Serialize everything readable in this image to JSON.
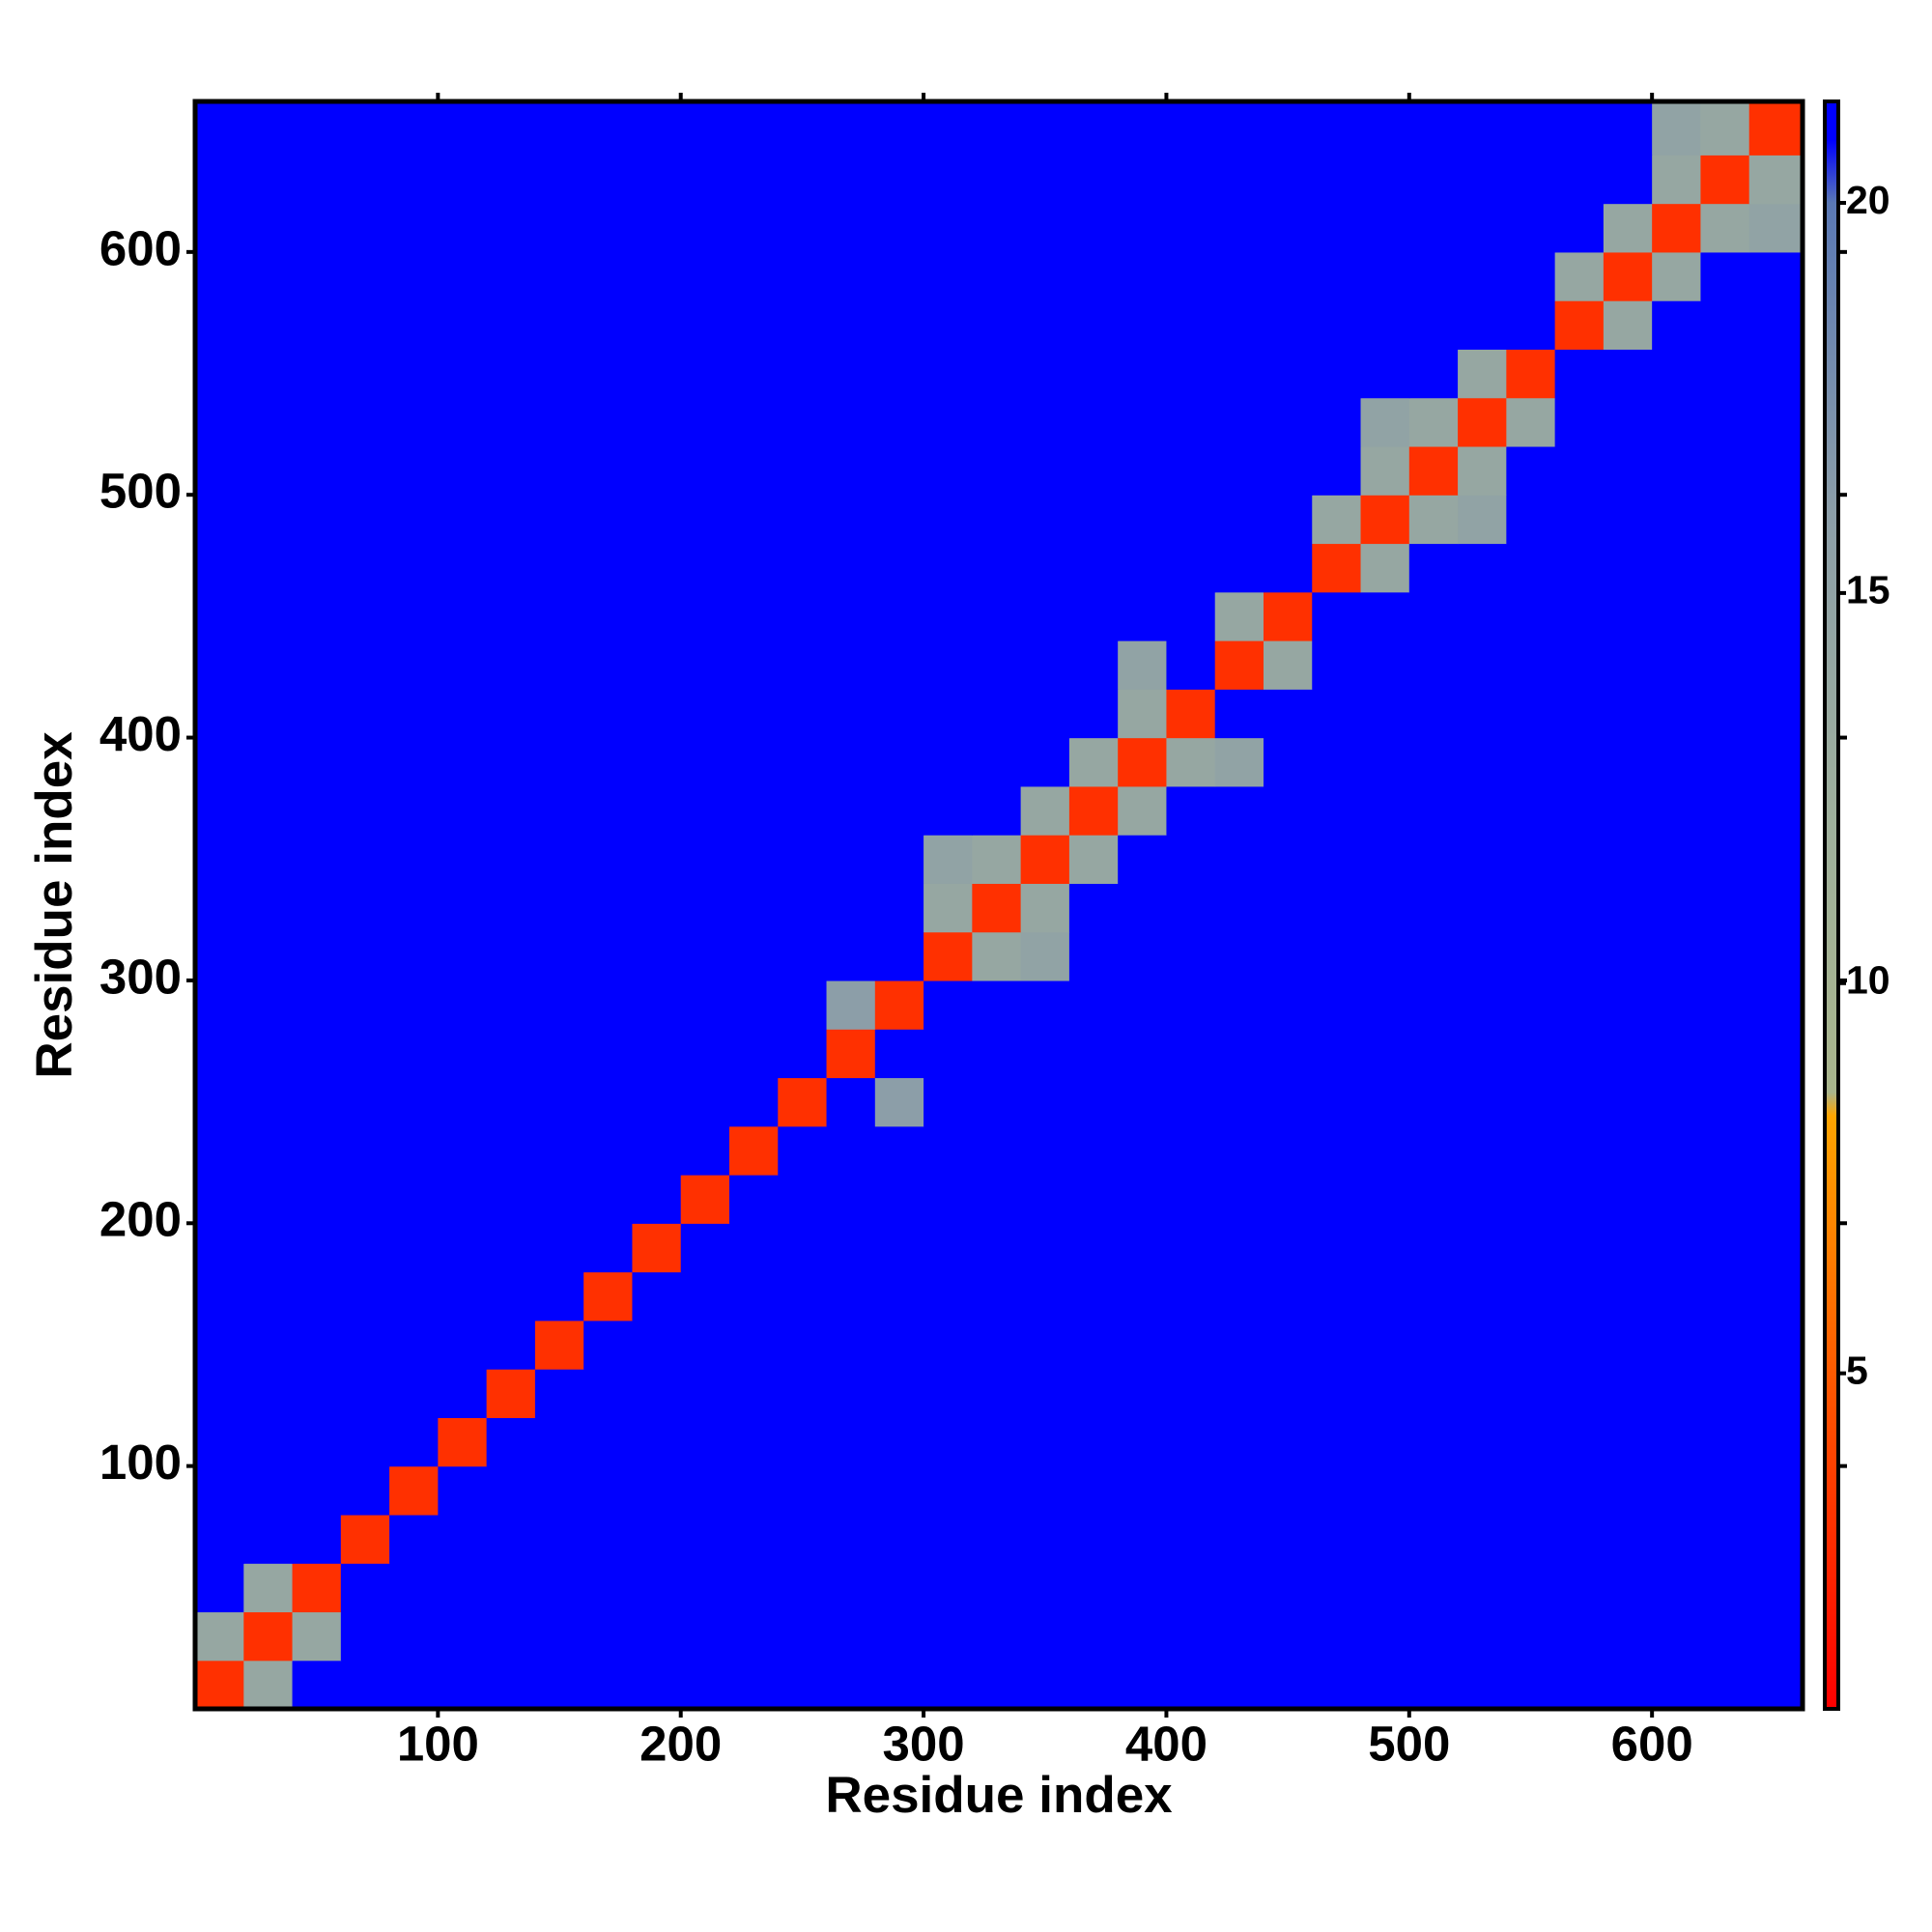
{
  "chart_data": {
    "type": "heatmap",
    "xlabel": "Residue index",
    "ylabel": "Residue index",
    "xlim": [
      0,
      662
    ],
    "ylim": [
      0,
      662
    ],
    "xticks": [
      100,
      200,
      300,
      400,
      500,
      600
    ],
    "yticks": [
      100,
      200,
      300,
      400,
      500,
      600
    ],
    "xbins": [
      0,
      20,
      40,
      60,
      80,
      100,
      120,
      140,
      160,
      180,
      200,
      220,
      240,
      260,
      280,
      300,
      320,
      340,
      360,
      380,
      400,
      420,
      440,
      460,
      480,
      500,
      520,
      540,
      560,
      580,
      600,
      620,
      640,
      662
    ],
    "ybins": [
      0,
      20,
      40,
      60,
      80,
      100,
      120,
      140,
      160,
      180,
      200,
      220,
      240,
      260,
      280,
      300,
      320,
      340,
      360,
      380,
      400,
      420,
      440,
      460,
      480,
      500,
      520,
      540,
      560,
      580,
      600,
      620,
      640,
      662
    ],
    "zlim": [
      0.7,
      21.3
    ],
    "zticks": [
      5,
      10,
      15,
      20
    ],
    "colorscale": [
      [
        0.7,
        "#ff0000"
      ],
      [
        5,
        "#ff5a00"
      ],
      [
        8.3,
        "#ffa500"
      ],
      [
        8.6,
        "#a9b58c"
      ],
      [
        12,
        "#9fb09c"
      ],
      [
        16,
        "#8c9ea8"
      ],
      [
        20,
        "#5a78b4"
      ],
      [
        20.8,
        "#0000ff"
      ],
      [
        21.3,
        "#0000ff"
      ]
    ],
    "z": [
      [
        3,
        14,
        21,
        21,
        21,
        21,
        21,
        21,
        21,
        21,
        21,
        21,
        21,
        21,
        21,
        21,
        21,
        21,
        21,
        21,
        21,
        21,
        21,
        21,
        21,
        21,
        21,
        21,
        21,
        21,
        21,
        21,
        21
      ],
      [
        14,
        3,
        14,
        21,
        21,
        21,
        21,
        21,
        21,
        21,
        21,
        21,
        21,
        21,
        21,
        21,
        21,
        21,
        21,
        21,
        21,
        21,
        21,
        21,
        21,
        21,
        21,
        21,
        21,
        21,
        21,
        21,
        21
      ],
      [
        21,
        14,
        3,
        21,
        21,
        21,
        21,
        21,
        21,
        21,
        21,
        21,
        21,
        21,
        21,
        21,
        21,
        21,
        21,
        21,
        21,
        21,
        21,
        21,
        21,
        21,
        21,
        21,
        21,
        21,
        21,
        21,
        21
      ],
      [
        21,
        21,
        21,
        3,
        21,
        21,
        21,
        21,
        21,
        21,
        21,
        21,
        21,
        21,
        21,
        21,
        21,
        21,
        21,
        21,
        21,
        21,
        21,
        21,
        21,
        21,
        21,
        21,
        21,
        21,
        21,
        21,
        21
      ],
      [
        21,
        21,
        21,
        21,
        3,
        21,
        21,
        21,
        21,
        21,
        21,
        21,
        21,
        21,
        21,
        21,
        21,
        21,
        21,
        21,
        21,
        21,
        21,
        21,
        21,
        21,
        21,
        21,
        21,
        21,
        21,
        21,
        21
      ],
      [
        21,
        21,
        21,
        21,
        21,
        3,
        21,
        21,
        21,
        21,
        21,
        21,
        21,
        21,
        21,
        21,
        21,
        21,
        21,
        21,
        21,
        21,
        21,
        21,
        21,
        21,
        21,
        21,
        21,
        21,
        21,
        21,
        21
      ],
      [
        21,
        21,
        21,
        21,
        21,
        21,
        3,
        21,
        21,
        21,
        21,
        21,
        21,
        21,
        21,
        21,
        21,
        21,
        21,
        21,
        21,
        21,
        21,
        21,
        21,
        21,
        21,
        21,
        21,
        21,
        21,
        21,
        21
      ],
      [
        21,
        21,
        21,
        21,
        21,
        21,
        21,
        3,
        21,
        21,
        21,
        21,
        21,
        21,
        21,
        21,
        21,
        21,
        21,
        21,
        21,
        21,
        21,
        21,
        21,
        21,
        21,
        21,
        21,
        21,
        21,
        21,
        21
      ],
      [
        21,
        21,
        21,
        21,
        21,
        21,
        21,
        21,
        3,
        21,
        21,
        21,
        21,
        21,
        21,
        21,
        21,
        21,
        21,
        21,
        21,
        21,
        21,
        21,
        21,
        21,
        21,
        21,
        21,
        21,
        21,
        21,
        21
      ],
      [
        21,
        21,
        21,
        21,
        21,
        21,
        21,
        21,
        21,
        3,
        21,
        21,
        21,
        21,
        21,
        21,
        21,
        21,
        21,
        21,
        21,
        21,
        21,
        21,
        21,
        21,
        21,
        21,
        21,
        21,
        21,
        21,
        21
      ],
      [
        21,
        21,
        21,
        21,
        21,
        21,
        21,
        21,
        21,
        21,
        3,
        21,
        21,
        21,
        21,
        21,
        21,
        21,
        21,
        21,
        21,
        21,
        21,
        21,
        21,
        21,
        21,
        21,
        21,
        21,
        21,
        21,
        21
      ],
      [
        21,
        21,
        21,
        21,
        21,
        21,
        21,
        21,
        21,
        21,
        21,
        3,
        21,
        21,
        21,
        21,
        21,
        21,
        21,
        21,
        21,
        21,
        21,
        21,
        21,
        21,
        21,
        21,
        21,
        21,
        21,
        21,
        21
      ],
      [
        21,
        21,
        21,
        21,
        21,
        21,
        21,
        21,
        21,
        21,
        21,
        21,
        3,
        21,
        16,
        21,
        21,
        21,
        21,
        21,
        21,
        21,
        21,
        21,
        21,
        21,
        21,
        21,
        21,
        21,
        21,
        21,
        21
      ],
      [
        21,
        21,
        21,
        21,
        21,
        21,
        21,
        21,
        21,
        21,
        21,
        21,
        21,
        3,
        21,
        21,
        21,
        21,
        21,
        21,
        21,
        21,
        21,
        21,
        21,
        21,
        21,
        21,
        21,
        21,
        21,
        21,
        21
      ],
      [
        21,
        21,
        21,
        21,
        21,
        21,
        21,
        21,
        21,
        21,
        21,
        21,
        21,
        16,
        3,
        21,
        21,
        21,
        21,
        21,
        21,
        21,
        21,
        21,
        21,
        21,
        21,
        21,
        21,
        21,
        21,
        21,
        21
      ],
      [
        21,
        21,
        21,
        21,
        21,
        21,
        21,
        21,
        21,
        21,
        21,
        21,
        21,
        21,
        21,
        3,
        14,
        15,
        21,
        21,
        21,
        21,
        21,
        21,
        21,
        21,
        21,
        21,
        21,
        21,
        21,
        21,
        21
      ],
      [
        21,
        21,
        21,
        21,
        21,
        21,
        21,
        21,
        21,
        21,
        21,
        21,
        21,
        21,
        21,
        14,
        3,
        14,
        21,
        21,
        21,
        21,
        21,
        21,
        21,
        21,
        21,
        21,
        21,
        21,
        21,
        21,
        21
      ],
      [
        21,
        21,
        21,
        21,
        21,
        21,
        21,
        21,
        21,
        21,
        21,
        21,
        21,
        21,
        21,
        15,
        14,
        3,
        14,
        21,
        21,
        21,
        21,
        21,
        21,
        21,
        21,
        21,
        21,
        21,
        21,
        21,
        21
      ],
      [
        21,
        21,
        21,
        21,
        21,
        21,
        21,
        21,
        21,
        21,
        21,
        21,
        21,
        21,
        21,
        21,
        21,
        14,
        3,
        14,
        21,
        21,
        21,
        21,
        21,
        21,
        21,
        21,
        21,
        21,
        21,
        21,
        21
      ],
      [
        21,
        21,
        21,
        21,
        21,
        21,
        21,
        21,
        21,
        21,
        21,
        21,
        21,
        21,
        21,
        21,
        21,
        21,
        14,
        3,
        14,
        15,
        21,
        21,
        21,
        21,
        21,
        21,
        21,
        21,
        21,
        21,
        21
      ],
      [
        21,
        21,
        21,
        21,
        21,
        21,
        21,
        21,
        21,
        21,
        21,
        21,
        21,
        21,
        21,
        21,
        21,
        21,
        21,
        14,
        3,
        21,
        21,
        21,
        21,
        21,
        21,
        21,
        21,
        21,
        21,
        21,
        21
      ],
      [
        21,
        21,
        21,
        21,
        21,
        21,
        21,
        21,
        21,
        21,
        21,
        21,
        21,
        21,
        21,
        21,
        21,
        21,
        21,
        15,
        21,
        3,
        14,
        21,
        21,
        21,
        21,
        21,
        21,
        21,
        21,
        21,
        21
      ],
      [
        21,
        21,
        21,
        21,
        21,
        21,
        21,
        21,
        21,
        21,
        21,
        21,
        21,
        21,
        21,
        21,
        21,
        21,
        21,
        21,
        21,
        14,
        3,
        21,
        21,
        21,
        21,
        21,
        21,
        21,
        21,
        21,
        21
      ],
      [
        21,
        21,
        21,
        21,
        21,
        21,
        21,
        21,
        21,
        21,
        21,
        21,
        21,
        21,
        21,
        21,
        21,
        21,
        21,
        21,
        21,
        21,
        21,
        3,
        14,
        21,
        21,
        21,
        21,
        21,
        21,
        21,
        21
      ],
      [
        21,
        21,
        21,
        21,
        21,
        21,
        21,
        21,
        21,
        21,
        21,
        21,
        21,
        21,
        21,
        21,
        21,
        21,
        21,
        21,
        21,
        21,
        21,
        14,
        3,
        14,
        15,
        21,
        21,
        21,
        21,
        21,
        21
      ],
      [
        21,
        21,
        21,
        21,
        21,
        21,
        21,
        21,
        21,
        21,
        21,
        21,
        21,
        21,
        21,
        21,
        21,
        21,
        21,
        21,
        21,
        21,
        21,
        21,
        14,
        3,
        14,
        21,
        21,
        21,
        21,
        21,
        21
      ],
      [
        21,
        21,
        21,
        21,
        21,
        21,
        21,
        21,
        21,
        21,
        21,
        21,
        21,
        21,
        21,
        21,
        21,
        21,
        21,
        21,
        21,
        21,
        21,
        21,
        15,
        14,
        3,
        14,
        21,
        21,
        21,
        21,
        21
      ],
      [
        21,
        21,
        21,
        21,
        21,
        21,
        21,
        21,
        21,
        21,
        21,
        21,
        21,
        21,
        21,
        21,
        21,
        21,
        21,
        21,
        21,
        21,
        21,
        21,
        21,
        21,
        14,
        3,
        21,
        21,
        21,
        21,
        21
      ],
      [
        21,
        21,
        21,
        21,
        21,
        21,
        21,
        21,
        21,
        21,
        21,
        21,
        21,
        21,
        21,
        21,
        21,
        21,
        21,
        21,
        21,
        21,
        21,
        21,
        21,
        21,
        21,
        21,
        3,
        14,
        21,
        21,
        21
      ],
      [
        21,
        21,
        21,
        21,
        21,
        21,
        21,
        21,
        21,
        21,
        21,
        21,
        21,
        21,
        21,
        21,
        21,
        21,
        21,
        21,
        21,
        21,
        21,
        21,
        21,
        21,
        21,
        21,
        14,
        3,
        14,
        21,
        21
      ],
      [
        21,
        21,
        21,
        21,
        21,
        21,
        21,
        21,
        21,
        21,
        21,
        21,
        21,
        21,
        21,
        21,
        21,
        21,
        21,
        21,
        21,
        21,
        21,
        21,
        21,
        21,
        21,
        21,
        21,
        14,
        3,
        14,
        15
      ],
      [
        21,
        21,
        21,
        21,
        21,
        21,
        21,
        21,
        21,
        21,
        21,
        21,
        21,
        21,
        21,
        21,
        21,
        21,
        21,
        21,
        21,
        21,
        21,
        21,
        21,
        21,
        21,
        21,
        21,
        21,
        14,
        3,
        14
      ],
      [
        21,
        21,
        21,
        21,
        21,
        21,
        21,
        21,
        21,
        21,
        21,
        21,
        21,
        21,
        21,
        21,
        21,
        21,
        21,
        21,
        21,
        21,
        21,
        21,
        21,
        21,
        21,
        21,
        21,
        21,
        15,
        14,
        3
      ]
    ]
  }
}
